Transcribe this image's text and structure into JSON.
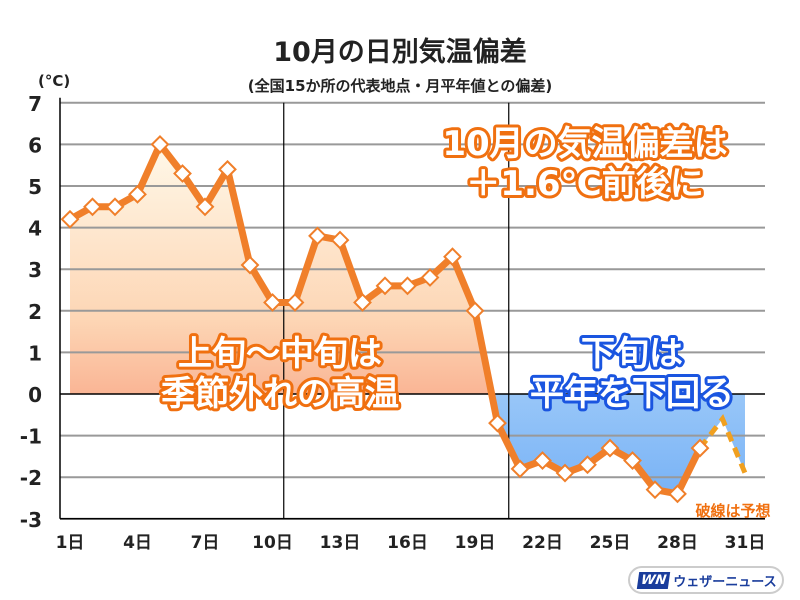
{
  "chart_data": {
    "type": "area",
    "title": "10月の日別気温偏差",
    "subtitle": "(全国15か所の代表地点・月平年値との偏差)",
    "ylabel": "(°C)",
    "ylim": [
      -3,
      7
    ],
    "yticks": [
      "7",
      "6",
      "5",
      "4",
      "3",
      "2",
      "1",
      "0",
      "-1",
      "-2",
      "-3"
    ],
    "xticks": [
      {
        "day": 1,
        "label": "1日"
      },
      {
        "day": 4,
        "label": "4日"
      },
      {
        "day": 7,
        "label": "7日"
      },
      {
        "day": 10,
        "label": "10日"
      },
      {
        "day": 13,
        "label": "13日"
      },
      {
        "day": 16,
        "label": "16日"
      },
      {
        "day": 19,
        "label": "19日"
      },
      {
        "day": 22,
        "label": "22日"
      },
      {
        "day": 25,
        "label": "25日"
      },
      {
        "day": 28,
        "label": "28日"
      },
      {
        "day": 31,
        "label": "31日"
      }
    ],
    "grid": true,
    "observed": {
      "days": [
        1,
        2,
        3,
        4,
        5,
        6,
        7,
        8,
        9,
        10,
        11,
        12,
        13,
        14,
        15,
        16,
        17,
        18,
        19,
        20,
        21,
        22,
        23,
        24,
        25,
        26,
        27,
        28,
        29
      ],
      "values": [
        4.2,
        4.5,
        4.5,
        4.8,
        6.0,
        5.3,
        4.5,
        5.4,
        3.1,
        2.2,
        2.2,
        3.8,
        3.7,
        2.2,
        2.6,
        2.6,
        2.8,
        3.3,
        2.0,
        -0.7,
        -1.8,
        -1.6,
        -1.9,
        -1.7,
        -1.3,
        -1.6,
        -2.3,
        -2.4,
        -1.3
      ]
    },
    "forecast": {
      "days": [
        29,
        30,
        31
      ],
      "values": [
        -1.3,
        -0.6,
        -1.9
      ]
    },
    "annotations": {
      "monthly": [
        "10月の気温偏差は",
        "＋1.6℃前後に"
      ],
      "early_mid": [
        "上旬～中旬は",
        "季節外れの高温"
      ],
      "late": [
        "下旬は",
        "平年を下回る"
      ],
      "forecast_note": "破線は予想"
    },
    "colors": {
      "line": "#f07f2a",
      "positive_fill_top": "#fff8e8",
      "positive_fill_bottom": "#f5896a",
      "negative_fill_top": "#e4f8fc",
      "negative_fill_bottom": "#6aaaf5",
      "late_text_outline": "#1a55e0",
      "early_text_outline": "#f07010",
      "forecast_line": "#f0a020"
    }
  },
  "logo": {
    "mark": "WN",
    "text": "ウェザーニュース"
  }
}
